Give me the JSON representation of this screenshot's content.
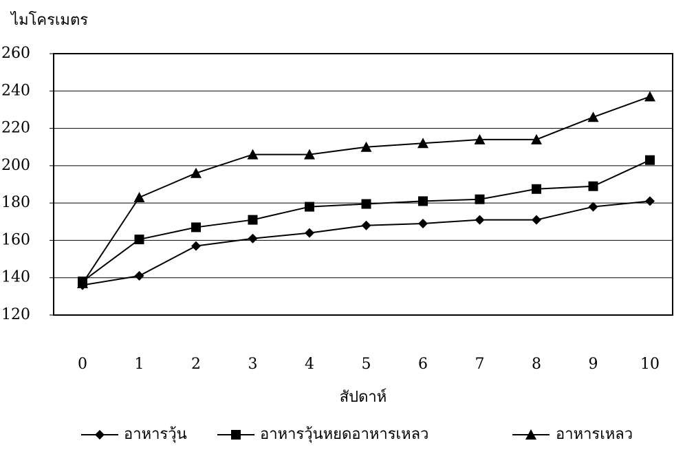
{
  "chart_data": {
    "type": "line",
    "y_label": "ไมโครเมตร",
    "x_label": "สัปดาห์",
    "categories": [
      "0",
      "1",
      "2",
      "3",
      "4",
      "5",
      "6",
      "7",
      "8",
      "9",
      "10"
    ],
    "series": [
      {
        "name": "อาหารวุ้น",
        "color": "#000000",
        "marker": "diamond",
        "values": [
          136,
          141,
          157,
          161,
          164,
          168,
          169,
          171,
          171,
          178,
          181
        ]
      },
      {
        "name": "อาหารวุ้นหยดอาหารเหลว",
        "color": "#000000",
        "marker": "square",
        "values": [
          138,
          160.5,
          167,
          171,
          178,
          179.5,
          181,
          182,
          187.5,
          189,
          203
        ]
      },
      {
        "name": "อาหารเหลว",
        "color": "#000000",
        "marker": "triangle",
        "values": [
          137,
          183,
          196,
          206,
          206,
          210,
          212,
          214,
          214,
          226,
          237
        ]
      }
    ],
    "ylim": [
      120,
      260
    ],
    "yticks": [
      120,
      140,
      160,
      180,
      200,
      220,
      240,
      260
    ],
    "grid": true
  }
}
